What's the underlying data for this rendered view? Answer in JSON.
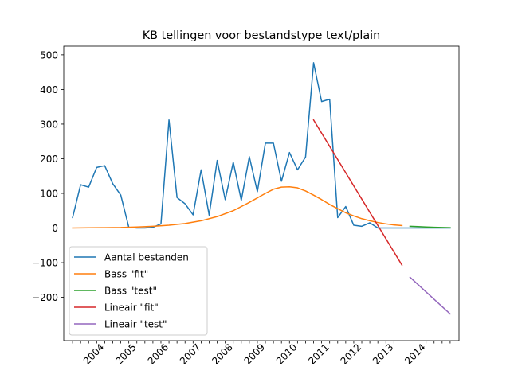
{
  "chart_data": {
    "type": "line",
    "title": "KB tellingen voor bestandstype text/plain",
    "xlabel": "",
    "ylabel": "",
    "ylim": [
      -325,
      525
    ],
    "yticks": [
      -200,
      -100,
      0,
      100,
      200,
      300,
      400,
      500
    ],
    "x_unit": "quarter_index",
    "xlim": [
      -1.1,
      48.1
    ],
    "xticks_minor": [
      0,
      1,
      2,
      3,
      4,
      5,
      6,
      7,
      8,
      9,
      10,
      11,
      12,
      13,
      14,
      15,
      16,
      17,
      18,
      19,
      20,
      21,
      22,
      23,
      24,
      25,
      26,
      27,
      28,
      29,
      30,
      31,
      32,
      33,
      34,
      35,
      36,
      37,
      38,
      39,
      40,
      41,
      42,
      43,
      44,
      45,
      46,
      47
    ],
    "xtick_labels": [
      {
        "label": "2004",
        "x": 4
      },
      {
        "label": "2005",
        "x": 8
      },
      {
        "label": "2006",
        "x": 12
      },
      {
        "label": "2007",
        "x": 16
      },
      {
        "label": "2008",
        "x": 20
      },
      {
        "label": "2009",
        "x": 24
      },
      {
        "label": "2010",
        "x": 28
      },
      {
        "label": "2011",
        "x": 32
      },
      {
        "label": "2012",
        "x": 36
      },
      {
        "label": "2013",
        "x": 40
      },
      {
        "label": "2014",
        "x": 44
      }
    ],
    "grid": false,
    "legend_position": "lower-left",
    "series": [
      {
        "name": "Aantal bestanden",
        "color": "#1f77b4",
        "points": [
          [
            0,
            30
          ],
          [
            1,
            125
          ],
          [
            2,
            118
          ],
          [
            3,
            175
          ],
          [
            4,
            180
          ],
          [
            5,
            128
          ],
          [
            6,
            95
          ],
          [
            7,
            2
          ],
          [
            8,
            0
          ],
          [
            9,
            0
          ],
          [
            10,
            2
          ],
          [
            11,
            12
          ],
          [
            12,
            312
          ],
          [
            13,
            88
          ],
          [
            14,
            70
          ],
          [
            15,
            38
          ],
          [
            16,
            168
          ],
          [
            17,
            37
          ],
          [
            18,
            195
          ],
          [
            19,
            82
          ],
          [
            20,
            190
          ],
          [
            21,
            80
          ],
          [
            22,
            206
          ],
          [
            23,
            105
          ],
          [
            24,
            245
          ],
          [
            25,
            245
          ],
          [
            26,
            135
          ],
          [
            27,
            218
          ],
          [
            28,
            168
          ],
          [
            29,
            205
          ],
          [
            30,
            477
          ],
          [
            31,
            365
          ],
          [
            32,
            372
          ],
          [
            33,
            30
          ],
          [
            34,
            62
          ],
          [
            35,
            8
          ],
          [
            36,
            5
          ],
          [
            37,
            15
          ],
          [
            38,
            0
          ],
          [
            39,
            0
          ],
          [
            40,
            0
          ],
          [
            41,
            0
          ],
          [
            42,
            0
          ],
          [
            43,
            0
          ],
          [
            44,
            0
          ],
          [
            45,
            0
          ],
          [
            46,
            0
          ],
          [
            47,
            0
          ]
        ]
      },
      {
        "name": "Bass \"fit\"",
        "color": "#ff7f0e",
        "points": [
          [
            0,
            0
          ],
          [
            2,
            0.5
          ],
          [
            4,
            1
          ],
          [
            6,
            1.5
          ],
          [
            8,
            3
          ],
          [
            10,
            5
          ],
          [
            12,
            8
          ],
          [
            14,
            13
          ],
          [
            16,
            21
          ],
          [
            18,
            33
          ],
          [
            20,
            50
          ],
          [
            22,
            74
          ],
          [
            24,
            100
          ],
          [
            25,
            112
          ],
          [
            26,
            118
          ],
          [
            27,
            119
          ],
          [
            28,
            116
          ],
          [
            29,
            107
          ],
          [
            30,
            95
          ],
          [
            31,
            82
          ],
          [
            32,
            68
          ],
          [
            33,
            56
          ],
          [
            34,
            44
          ],
          [
            35,
            35
          ],
          [
            36,
            27
          ],
          [
            37,
            21
          ],
          [
            38,
            16
          ],
          [
            39,
            12
          ],
          [
            40,
            9
          ],
          [
            41,
            7
          ]
        ]
      },
      {
        "name": "Bass \"test\"",
        "color": "#2ca02c",
        "points": [
          [
            42,
            5
          ],
          [
            43,
            4
          ],
          [
            44,
            3
          ],
          [
            45,
            2
          ],
          [
            46,
            1.5
          ],
          [
            47,
            1
          ]
        ]
      },
      {
        "name": "Lineair \"fit\"",
        "color": "#d62728",
        "points": [
          [
            30,
            312
          ],
          [
            41,
            -107
          ]
        ]
      },
      {
        "name": "Lineair \"test\"",
        "color": "#9467bd",
        "points": [
          [
            42,
            -142
          ],
          [
            47,
            -248
          ]
        ]
      }
    ]
  }
}
